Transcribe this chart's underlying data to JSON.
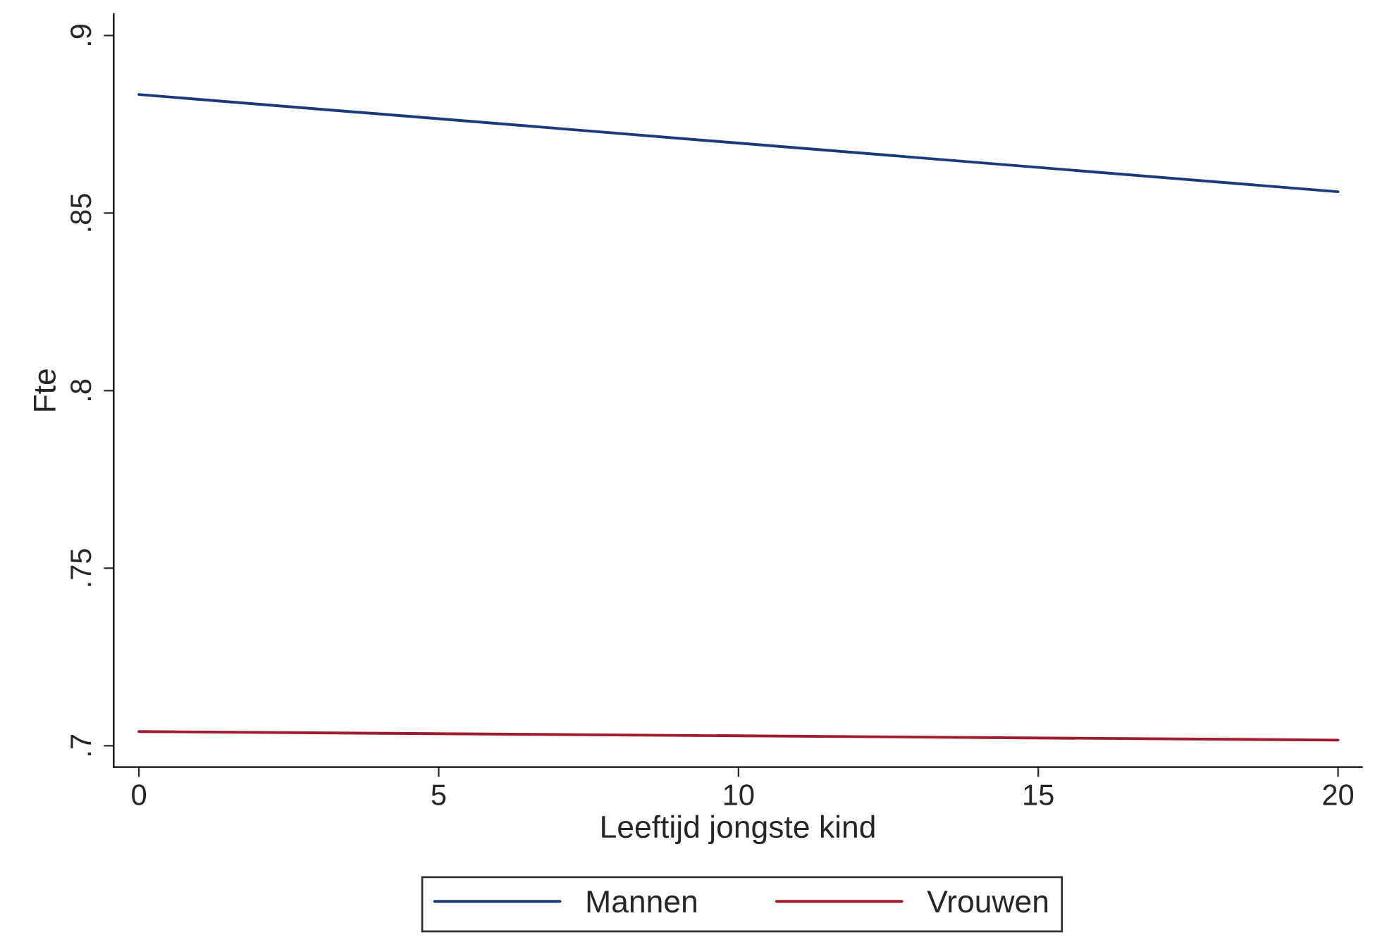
{
  "chart_data": {
    "type": "line",
    "xlabel": "Leeftijd jongste kind",
    "ylabel": "Fte",
    "x": [
      0,
      20
    ],
    "series": [
      {
        "name": "Mannen",
        "color": "#1a3a7a",
        "values": [
          0.8834,
          0.856
        ]
      },
      {
        "name": "Vrouwen",
        "color": "#a01c2c",
        "values": [
          0.704,
          0.7016
        ]
      }
    ],
    "xlim": [
      -0.42,
      20.4
    ],
    "ylim": [
      0.694,
      0.906
    ],
    "xticks": [
      0,
      5,
      10,
      15,
      20
    ],
    "yticks": [
      {
        "value": 0.7,
        "label": ".7"
      },
      {
        "value": 0.75,
        "label": ".75"
      },
      {
        "value": 0.8,
        "label": ".8"
      },
      {
        "value": 0.85,
        "label": ".85"
      },
      {
        "value": 0.9,
        "label": ".9"
      }
    ],
    "grid": false,
    "legend": "bottom",
    "marker": "none",
    "line_style": "solid"
  }
}
